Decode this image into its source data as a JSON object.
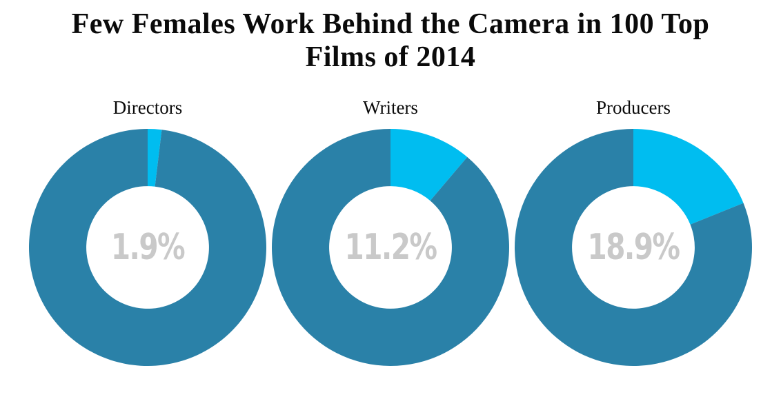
{
  "title_lines": [
    "Few Females Work Behind the Camera in 100 Top",
    "Films of 2014"
  ],
  "chart_data": {
    "type": "pie",
    "subtype": "donut",
    "title": "Few Females Work Behind the Camera in 100 Top Films of 2014",
    "legend": "none",
    "start_angle_deg": 0,
    "direction": "clockwise",
    "inner_radius_ratio": 0.517,
    "donuts": [
      {
        "label": "Directors",
        "female_pct": 1.9,
        "other_pct": 98.1,
        "center_label": "1.9%"
      },
      {
        "label": "Writers",
        "female_pct": 11.2,
        "other_pct": 88.8,
        "center_label": "11.2%"
      },
      {
        "label": "Producers",
        "female_pct": 18.9,
        "other_pct": 81.1,
        "center_label": "18.9%"
      }
    ],
    "colors": {
      "female_slice": "#00bdf0",
      "other_slice": "#2a81a8",
      "center_text": "#c9c9c9",
      "title_text": "#0a0a0a"
    }
  }
}
